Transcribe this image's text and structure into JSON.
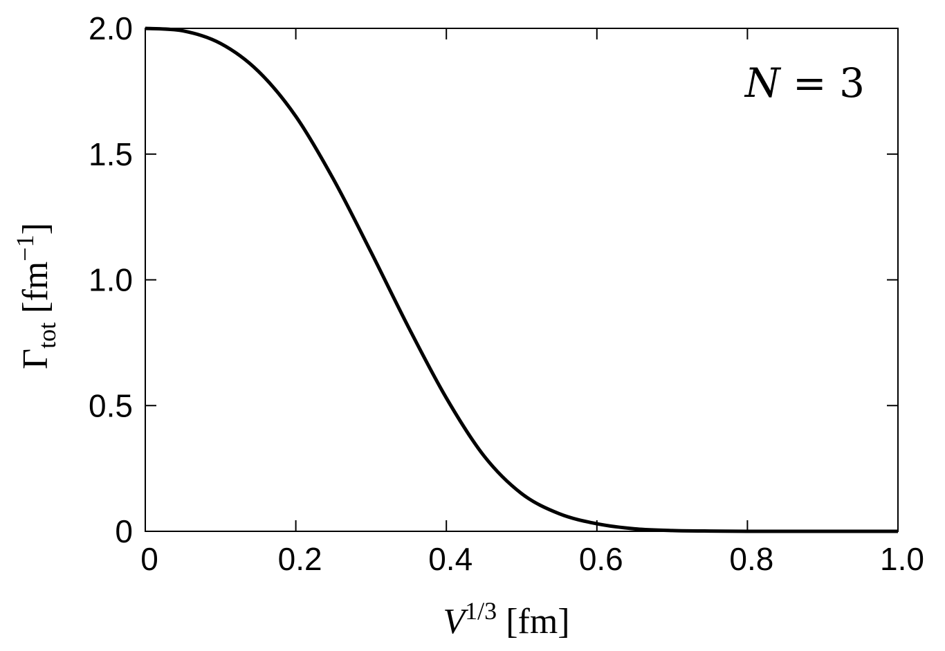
{
  "chart_data": {
    "type": "line",
    "xlabel": {
      "main": "V",
      "sup": "1/3",
      "unit": " [fm]"
    },
    "ylabel": {
      "main": "Γ",
      "sub": "tot",
      "unit_prefix": " [fm",
      "unit_sup": "−1",
      "unit_suffix": "]"
    },
    "annotation": {
      "var": "N",
      "rest": " = 3"
    },
    "xlim": [
      0,
      1.0
    ],
    "ylim": [
      0,
      2.0
    ],
    "x_ticks": [
      {
        "value": 0,
        "label": "0"
      },
      {
        "value": 0.2,
        "label": "0.2"
      },
      {
        "value": 0.4,
        "label": "0.4"
      },
      {
        "value": 0.6,
        "label": "0.6"
      },
      {
        "value": 0.8,
        "label": "0.8"
      },
      {
        "value": 1.0,
        "label": "1.0"
      }
    ],
    "y_ticks": [
      {
        "value": 0,
        "label": "0"
      },
      {
        "value": 0.5,
        "label": "0.5"
      },
      {
        "value": 1.0,
        "label": "1.0"
      },
      {
        "value": 1.5,
        "label": "1.5"
      },
      {
        "value": 2.0,
        "label": "2.0"
      }
    ],
    "grid": false,
    "series": [
      {
        "color": "#000000",
        "x": [
          0,
          0.05,
          0.1,
          0.15,
          0.2,
          0.25,
          0.3,
          0.35,
          0.4,
          0.45,
          0.5,
          0.55,
          0.6,
          0.65,
          0.7,
          0.75,
          0.8,
          0.9,
          1.0
        ],
        "y": [
          2.0,
          1.99,
          1.94,
          1.83,
          1.65,
          1.4,
          1.11,
          0.81,
          0.53,
          0.3,
          0.15,
          0.07,
          0.03,
          0.01,
          0.003,
          0.001,
          0.0,
          0.0,
          0.0
        ]
      }
    ]
  }
}
